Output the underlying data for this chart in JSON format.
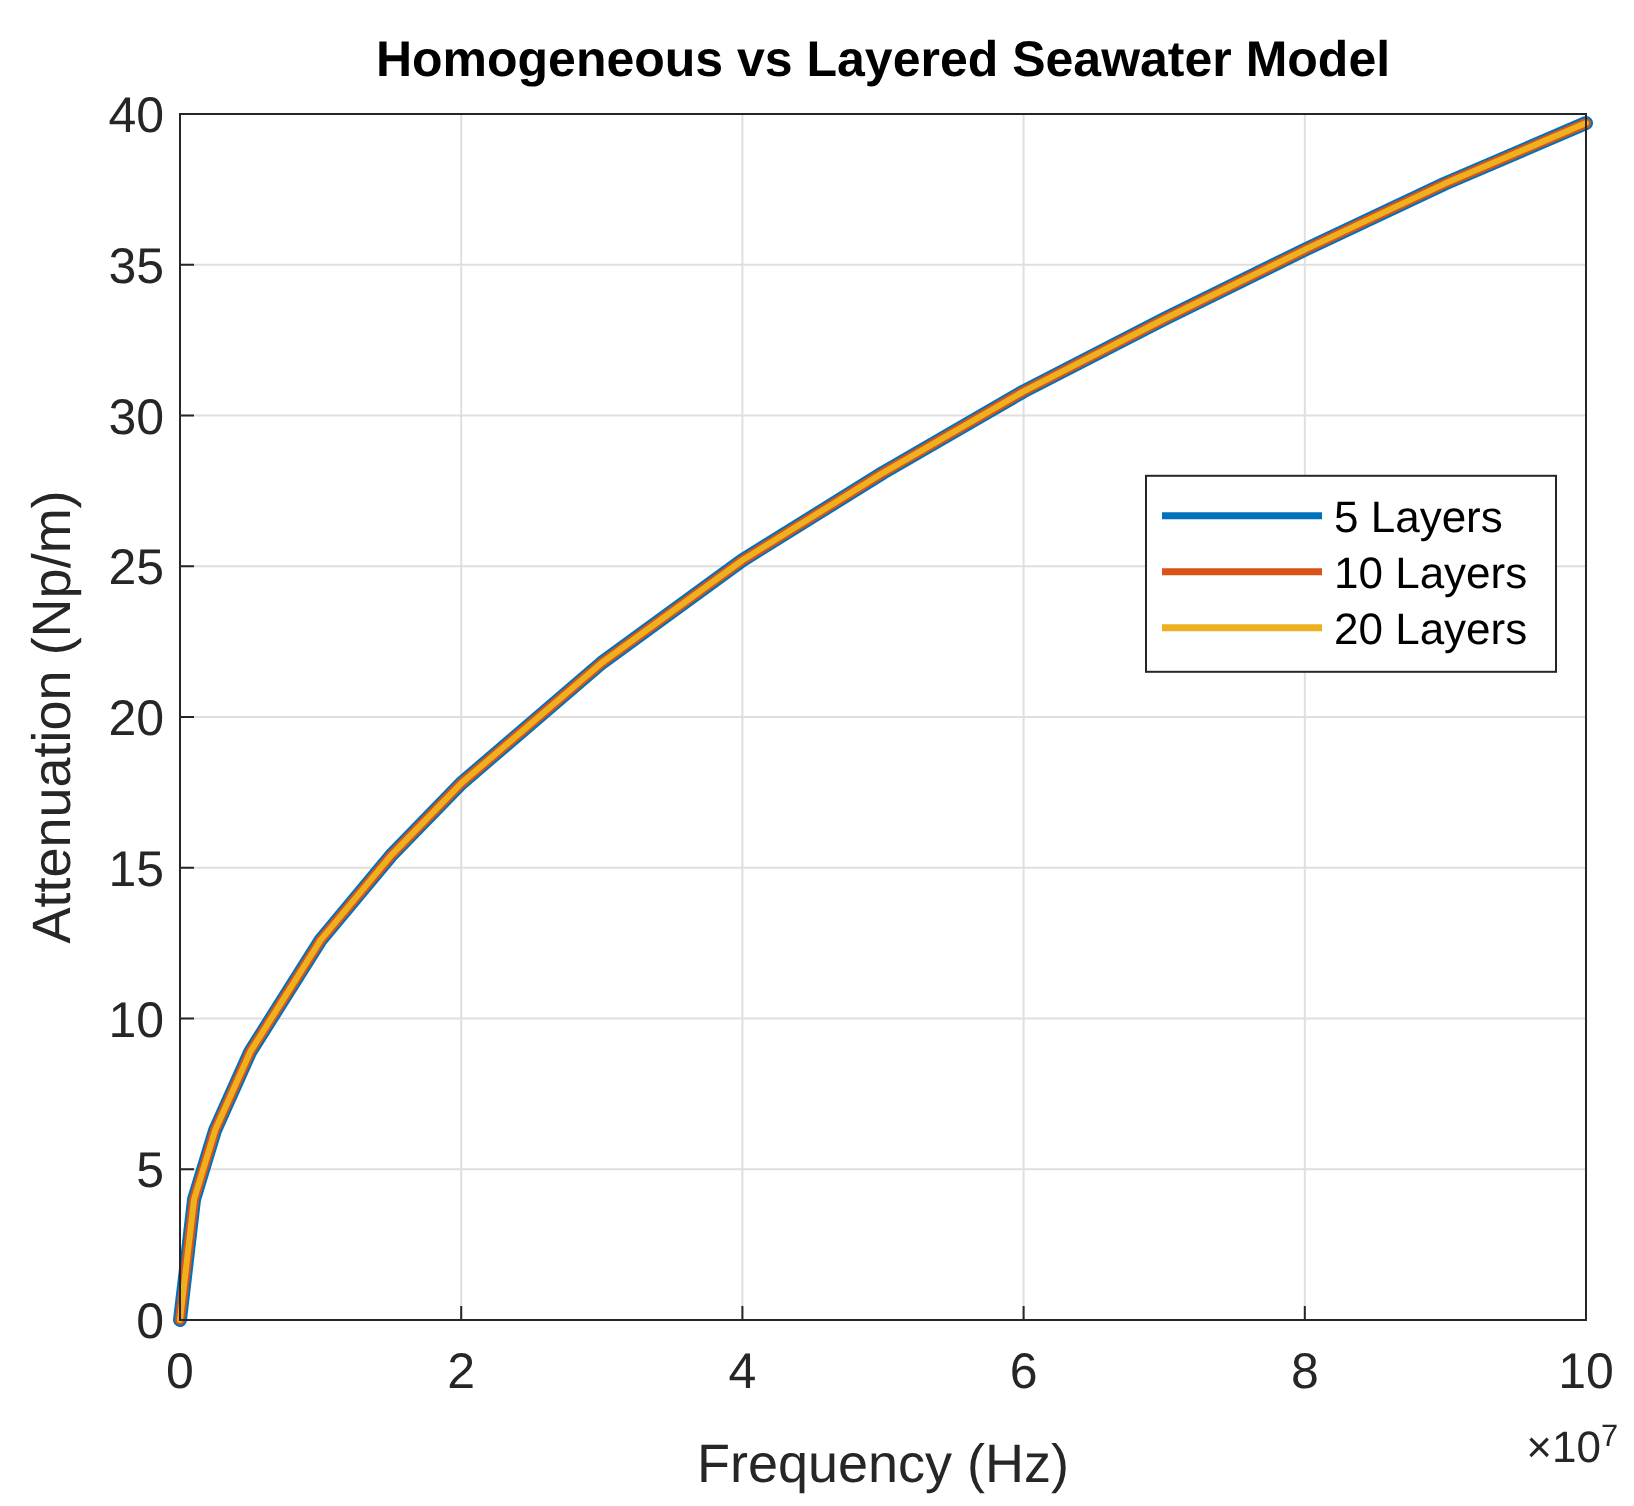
{
  "chart_data": {
    "type": "line",
    "title": "Homogeneous vs Layered Seawater Model",
    "xlabel": "Frequency (Hz)",
    "ylabel": "Attenuation (Np/m)",
    "annotations": [
      "×10$^{7}$"
    ],
    "x": [
      0,
      0.1,
      0.25,
      0.5,
      1,
      1.5,
      2,
      3,
      4,
      5,
      6,
      7,
      8,
      9,
      10
    ],
    "series": [
      {
        "name": "5 Layers",
        "color": "#0072bd",
        "values": [
          0,
          4.0,
          6.3,
          8.9,
          12.6,
          15.4,
          17.8,
          21.8,
          25.2,
          28.1,
          30.8,
          33.2,
          35.5,
          37.7,
          39.7
        ]
      },
      {
        "name": "10 Layers",
        "color": "#d95319",
        "values": [
          0,
          4.0,
          6.3,
          8.9,
          12.6,
          15.4,
          17.8,
          21.8,
          25.2,
          28.1,
          30.8,
          33.2,
          35.5,
          37.7,
          39.7
        ]
      },
      {
        "name": "20 Layers",
        "color": "#edb120",
        "values": [
          0,
          4.0,
          6.3,
          8.9,
          12.6,
          15.4,
          17.8,
          21.8,
          25.2,
          28.1,
          30.8,
          33.2,
          35.5,
          37.7,
          39.7
        ]
      }
    ],
    "xlim": [
      0,
      10
    ],
    "xticks": [
      0,
      2,
      4,
      6,
      8,
      10
    ],
    "ylim": [
      0,
      40
    ],
    "yticks": [
      0,
      5,
      10,
      15,
      20,
      25,
      30,
      35,
      40
    ],
    "grid": true,
    "legend": "right",
    "marker": "none",
    "line_style": "solid"
  }
}
